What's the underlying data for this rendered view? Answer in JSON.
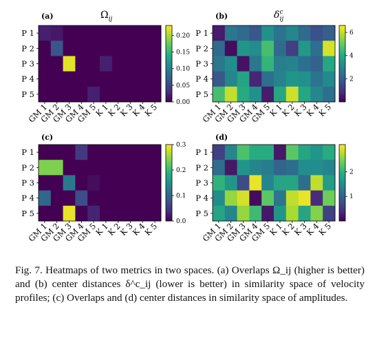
{
  "chart_data": [
    {
      "type": "heatmap",
      "panel_label": "(a)",
      "title": "Ω_ij",
      "rows": [
        "P 1",
        "P 2",
        "P 3",
        "P 4",
        "P 5"
      ],
      "cols": [
        "GM 1",
        "GM 2",
        "GM 3",
        "GM 4",
        "GM 5",
        "K 1",
        "K 2",
        "K 3",
        "K 4",
        "K 5"
      ],
      "vmin": 0,
      "vmax": 0.23,
      "colorbar_ticks": [
        "0.00",
        "0.05",
        "0.10",
        "0.15",
        "0.20"
      ],
      "colorbar_values": [
        0.0,
        0.05,
        0.1,
        0.15,
        0.2
      ],
      "values": [
        [
          0.02,
          0.015,
          0,
          0,
          0,
          0,
          0,
          0,
          0,
          0
        ],
        [
          0,
          0.06,
          0,
          0,
          0,
          0,
          0,
          0,
          0,
          0
        ],
        [
          0,
          0,
          0.22,
          0,
          0,
          0.02,
          0,
          0,
          0,
          0
        ],
        [
          0,
          0,
          0,
          0,
          0,
          0,
          0,
          0,
          0,
          0
        ],
        [
          0,
          0,
          0,
          0,
          0.02,
          0,
          0,
          0,
          0,
          0
        ]
      ]
    },
    {
      "type": "heatmap",
      "panel_label": "(b)",
      "title": "δ^c_ij",
      "rows": [
        "P 1",
        "P 2",
        "P 3",
        "P 4",
        "P 5"
      ],
      "cols": [
        "GM 1",
        "GM 2",
        "GM 3",
        "GM 4",
        "GM 5",
        "K 1",
        "K 2",
        "K 3",
        "K 4",
        "K 5"
      ],
      "vmin": 0,
      "vmax": 6.6,
      "colorbar_ticks": [
        "2",
        "4",
        "6"
      ],
      "colorbar_values": [
        2,
        4,
        6
      ],
      "values": [
        [
          0.5,
          2.6,
          2.3,
          1.8,
          3.3,
          2.5,
          3.0,
          2.3,
          1.6,
          2.0
        ],
        [
          2.3,
          0.2,
          3.4,
          3.2,
          4.6,
          2.3,
          1.2,
          3.5,
          2.4,
          6.2
        ],
        [
          2.6,
          3.2,
          0.3,
          2.6,
          4.3,
          2.8,
          2.9,
          2.4,
          2.1,
          3.9
        ],
        [
          1.8,
          3.0,
          3.8,
          0.7,
          2.4,
          2.9,
          3.4,
          3.3,
          2.5,
          3.1
        ],
        [
          4.6,
          6.0,
          4.0,
          3.3,
          0.5,
          3.9,
          6.1,
          3.9,
          3.0,
          2.4
        ]
      ]
    },
    {
      "type": "heatmap",
      "panel_label": "(c)",
      "title": "",
      "rows": [
        "P 1",
        "P 2",
        "P 3",
        "P 4",
        "P 5"
      ],
      "cols": [
        "GM 1",
        "GM 2",
        "GM 3",
        "GM 4",
        "GM 5",
        "K 1",
        "K 2",
        "K 3",
        "K 4",
        "K 5"
      ],
      "vmin": 0,
      "vmax": 0.3,
      "colorbar_ticks": [
        "0.0",
        "0.1",
        "0.2",
        "0.3"
      ],
      "colorbar_values": [
        0.0,
        0.1,
        0.2,
        0.3
      ],
      "values": [
        [
          0,
          0,
          0,
          0.05,
          0,
          0,
          0,
          0,
          0,
          0
        ],
        [
          0.24,
          0.24,
          0,
          0,
          0,
          0,
          0,
          0,
          0,
          0
        ],
        [
          0,
          0,
          0.12,
          0,
          0.01,
          0,
          0,
          0,
          0,
          0
        ],
        [
          0.1,
          0,
          0,
          0.07,
          0,
          0,
          0,
          0,
          0,
          0
        ],
        [
          0,
          0,
          0.29,
          0,
          0.03,
          0,
          0,
          0,
          0,
          0
        ]
      ]
    },
    {
      "type": "heatmap",
      "panel_label": "(d)",
      "title": "",
      "rows": [
        "P 1",
        "P 2",
        "P 3",
        "P 4",
        "P 5"
      ],
      "cols": [
        "GM 1",
        "GM 2",
        "GM 3",
        "GM 4",
        "GM 5",
        "K 1",
        "K 2",
        "K 3",
        "K 4",
        "K 5"
      ],
      "vmin": 0,
      "vmax": 3.1,
      "colorbar_ticks": [
        "1",
        "2"
      ],
      "colorbar_values": [
        1,
        2
      ],
      "values": [
        [
          0.6,
          1.4,
          2.2,
          1.9,
          1.9,
          0.2,
          2.3,
          1.8,
          1.6,
          1.9
        ],
        [
          1.1,
          0.2,
          1.6,
          1.4,
          1.3,
          1.0,
          1.1,
          1.5,
          1.5,
          1.4
        ],
        [
          2.0,
          1.6,
          0.7,
          3.0,
          1.4,
          1.8,
          1.8,
          1.1,
          2.8,
          1.7
        ],
        [
          1.5,
          2.6,
          2.9,
          0.1,
          2.3,
          1.2,
          2.8,
          3.0,
          0.4,
          2.4
        ],
        [
          1.8,
          1.4,
          2.6,
          2.1,
          0.2,
          1.6,
          2.7,
          1.8,
          2.5,
          0.6
        ]
      ]
    }
  ],
  "caption": "Fig. 7.   Heatmaps of two metrics in two spaces. (a) Overlaps Ω_ij (higher is better) and (b) center distances δ^c_ij (lower is better) in similarity space of velocity profiles; (c) Overlaps and (d) center distances in similarity space of amplitudes."
}
